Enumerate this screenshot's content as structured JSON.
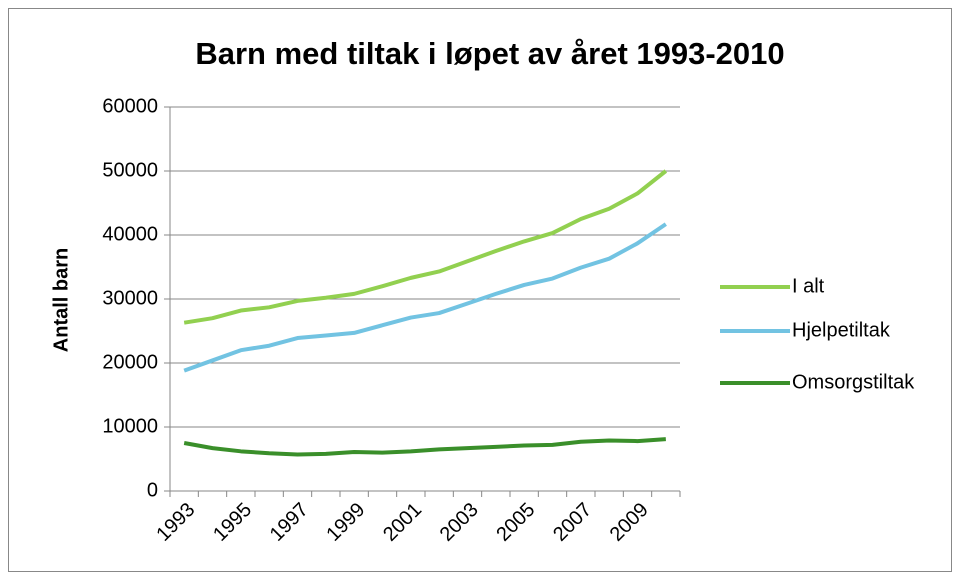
{
  "chart_data": {
    "type": "line",
    "title": "Barn med tiltak i løpet av året 1993-2010",
    "y_label": "Antall barn",
    "categories": [
      "1993",
      null,
      "1995",
      null,
      "1997",
      null,
      "1999",
      null,
      "2001",
      null,
      "2003",
      null,
      "2005",
      null,
      "2007",
      null,
      "2009",
      null
    ],
    "series": [
      {
        "name": "I alt",
        "color": "#92d050",
        "values": [
          26300,
          27000,
          28200,
          28700,
          29700,
          30200,
          30800,
          32000,
          33300,
          34300,
          35900,
          37500,
          39000,
          40300,
          42500,
          44100,
          46500,
          50000
        ]
      },
      {
        "name": "Hjelpetiltak",
        "color": "#72c3e2",
        "values": [
          18800,
          20400,
          22000,
          22700,
          23900,
          24300,
          24700,
          25900,
          27100,
          27800,
          29300,
          30800,
          32200,
          33200,
          34900,
          36300,
          38700,
          41700
        ]
      },
      {
        "name": "Omsorgstiltak",
        "color": "#3a8f2a",
        "values": [
          7500,
          6700,
          6200,
          5900,
          5700,
          5800,
          6100,
          6000,
          6200,
          6500,
          6700,
          6900,
          7100,
          7200,
          7700,
          7900,
          7800,
          8100
        ]
      }
    ],
    "ylim": [
      0,
      60000
    ],
    "yticks": [
      0,
      10000,
      20000,
      30000,
      40000,
      50000,
      60000
    ],
    "grid": true,
    "legend": "right"
  }
}
